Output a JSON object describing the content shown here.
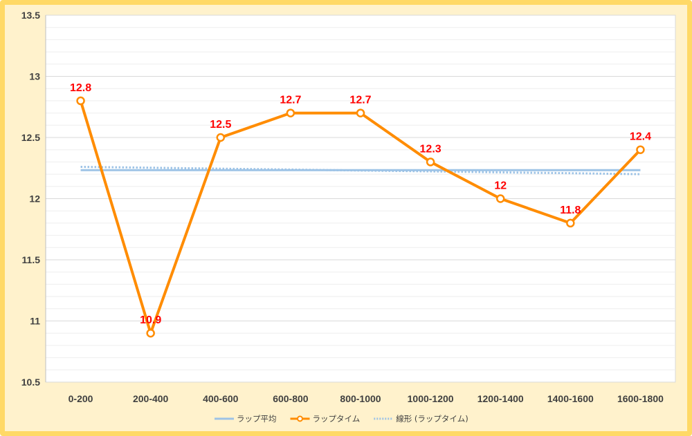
{
  "chart_data": {
    "type": "line",
    "categories": [
      "0-200",
      "200-400",
      "400-600",
      "600-800",
      "800-1000",
      "1000-1200",
      "1200-1400",
      "1400-1600",
      "1600-1800"
    ],
    "ylim": [
      10.5,
      13.5
    ],
    "yticks": [
      10.5,
      11,
      11.5,
      12,
      12.5,
      13,
      13.5
    ],
    "ytick_labels": [
      "10.5",
      "11",
      "11.5",
      "12",
      "12.5",
      "13",
      "13.5"
    ],
    "grid": true,
    "legend_position": "bottom",
    "series": [
      {
        "name": "ラップ平均",
        "kind": "avg",
        "color": "#9dc3e6",
        "values": [
          12.233,
          12.233,
          12.233,
          12.233,
          12.233,
          12.233,
          12.233,
          12.233,
          12.233
        ]
      },
      {
        "name": "ラップタイム",
        "kind": "main",
        "color": "#ff8c00",
        "values": [
          12.8,
          10.9,
          12.5,
          12.7,
          12.7,
          12.3,
          12.0,
          11.8,
          12.4
        ],
        "data_labels": [
          "12.8",
          "10.9",
          "12.5",
          "12.7",
          "12.7",
          "12.3",
          "12",
          "11.8",
          "12.4"
        ],
        "data_label_color": "#ff0000"
      },
      {
        "name": "線形 (ラップタイム)",
        "kind": "trend",
        "color": "#9dc3e6",
        "values": [
          12.26,
          12.253,
          12.245,
          12.238,
          12.23,
          12.223,
          12.215,
          12.208,
          12.2
        ]
      }
    ]
  }
}
